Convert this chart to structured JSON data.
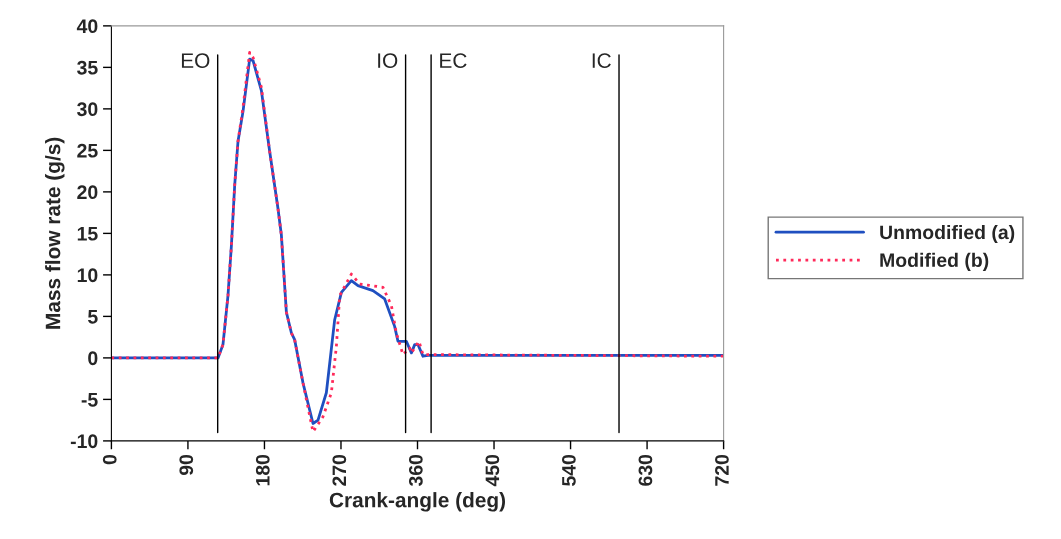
{
  "chart_data": {
    "type": "line",
    "xlabel": "Crank-angle (deg)",
    "ylabel": "Mass flow rate (g/s)",
    "xlim": [
      0,
      720
    ],
    "xticks": [
      0,
      90,
      180,
      270,
      360,
      450,
      540,
      630,
      720
    ],
    "ylim": [
      -10,
      40
    ],
    "yticks": [
      -10,
      -5,
      0,
      5,
      10,
      15,
      20,
      25,
      30,
      35,
      40
    ],
    "grid": false,
    "legend": "right",
    "marker": "none",
    "series": [
      {
        "name": "Unmodified (a)",
        "color": "#1f4fc0",
        "line_style": "solid",
        "x": [
          0,
          125.4,
          131.2,
          137.1,
          141.1,
          145,
          148.9,
          154.8,
          162.6,
          166.6,
          176.4,
          186.1,
          195.9,
          199.9,
          205.8,
          211.7,
          215.5,
          225.3,
          237.1,
          243,
          252.8,
          262.6,
          270.5,
          282.2,
          290,
          307.6,
          321.4,
          333.1,
          337,
          346.9,
          352.8,
          356.7,
          360.6,
          366.4,
          372.3,
          720
        ],
        "values": [
          0,
          0,
          1.6,
          7.5,
          13.5,
          20.8,
          26.1,
          29.7,
          36.0,
          35.8,
          32.2,
          24.9,
          18.0,
          14.8,
          5.5,
          3.0,
          2.2,
          -3.0,
          -7.9,
          -7.5,
          -4.2,
          4.6,
          7.9,
          9.3,
          8.7,
          8.1,
          7.1,
          3.8,
          2.0,
          2.0,
          0.6,
          1.6,
          1.6,
          0.2,
          0.3,
          0.3
        ]
      },
      {
        "name": "Modified (b)",
        "color": "#ff2a5a",
        "line_style": "dotted",
        "x": [
          0,
          125.4,
          131.2,
          137.1,
          141.1,
          145,
          148.9,
          154.8,
          162.6,
          166.6,
          176.4,
          186.1,
          195.9,
          199.9,
          205.8,
          211.7,
          215.5,
          225.3,
          237.1,
          248.8,
          258.7,
          264.6,
          268.5,
          282.2,
          292,
          319.4,
          329.3,
          335.1,
          342.9,
          350.8,
          352.8,
          361.7,
          366.4,
          720
        ],
        "values": [
          0,
          0,
          1.6,
          7.5,
          13.5,
          20.8,
          26.1,
          30.2,
          36.8,
          36.2,
          32.6,
          24.9,
          18.0,
          14.8,
          5.5,
          3.0,
          2.2,
          -3.0,
          -8.9,
          -7.1,
          -4.2,
          1.4,
          7.5,
          10.1,
          8.9,
          8.5,
          6.3,
          3.0,
          0.4,
          1.2,
          0.6,
          2.0,
          0.4,
          0.2
        ]
      }
    ],
    "ref_lines": [
      {
        "axis": "x",
        "value": 125,
        "color": "#000000",
        "label": "EO"
      },
      {
        "axis": "x",
        "value": 346,
        "color": "#000000",
        "label": "IO"
      },
      {
        "axis": "x",
        "value": 376,
        "color": "#000000",
        "label": "EC"
      },
      {
        "axis": "x",
        "value": 597,
        "color": "#000000",
        "label": "IC"
      }
    ]
  }
}
